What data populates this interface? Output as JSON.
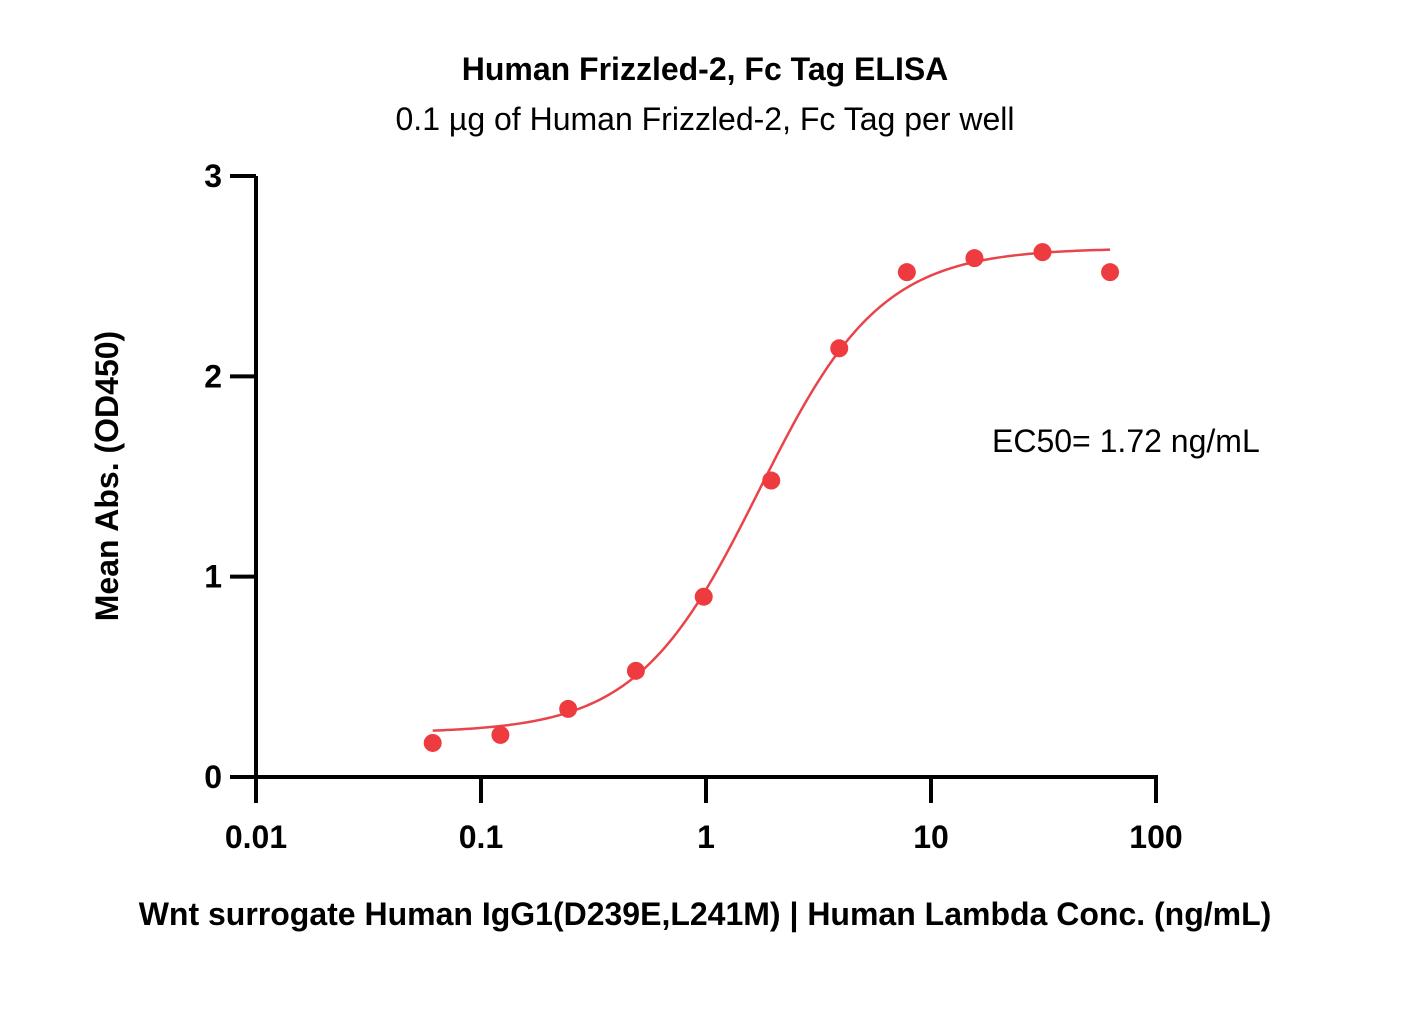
{
  "chart_data": {
    "type": "scatter",
    "title": "Human Frizzled-2, Fc Tag ELISA",
    "subtitle": "0.1 µg of Human Frizzled-2, Fc Tag per well",
    "xlabel": "Wnt surrogate Human IgG1(D239E,L241M) | Human Lambda Conc. (ng/mL)",
    "ylabel": "Mean Abs. (OD450)",
    "x_scale": "log",
    "xlim": [
      0.01,
      100
    ],
    "ylim": [
      0,
      3
    ],
    "x_ticks": [
      0.01,
      0.1,
      1,
      10,
      100
    ],
    "x_tick_labels": [
      "0.01",
      "0.1",
      "1",
      "10",
      "100"
    ],
    "y_ticks": [
      0,
      1,
      2,
      3
    ],
    "y_tick_labels": [
      "0",
      "1",
      "2",
      "3"
    ],
    "grid": false,
    "series": [
      {
        "color": "#ee3b3f",
        "x": [
          0.061,
          0.122,
          0.244,
          0.488,
          0.977,
          1.95,
          3.91,
          7.81,
          15.6,
          31.3,
          62.5
        ],
        "y": [
          0.17,
          0.21,
          0.34,
          0.53,
          0.9,
          1.48,
          2.14,
          2.52,
          2.59,
          2.62,
          2.52
        ],
        "fit": {
          "model": "4PL",
          "bottom": 0.22,
          "top": 2.64,
          "ec50": 1.72,
          "hill": 1.6
        }
      }
    ],
    "annotation": "EC50= 1.72 ng/mL"
  }
}
